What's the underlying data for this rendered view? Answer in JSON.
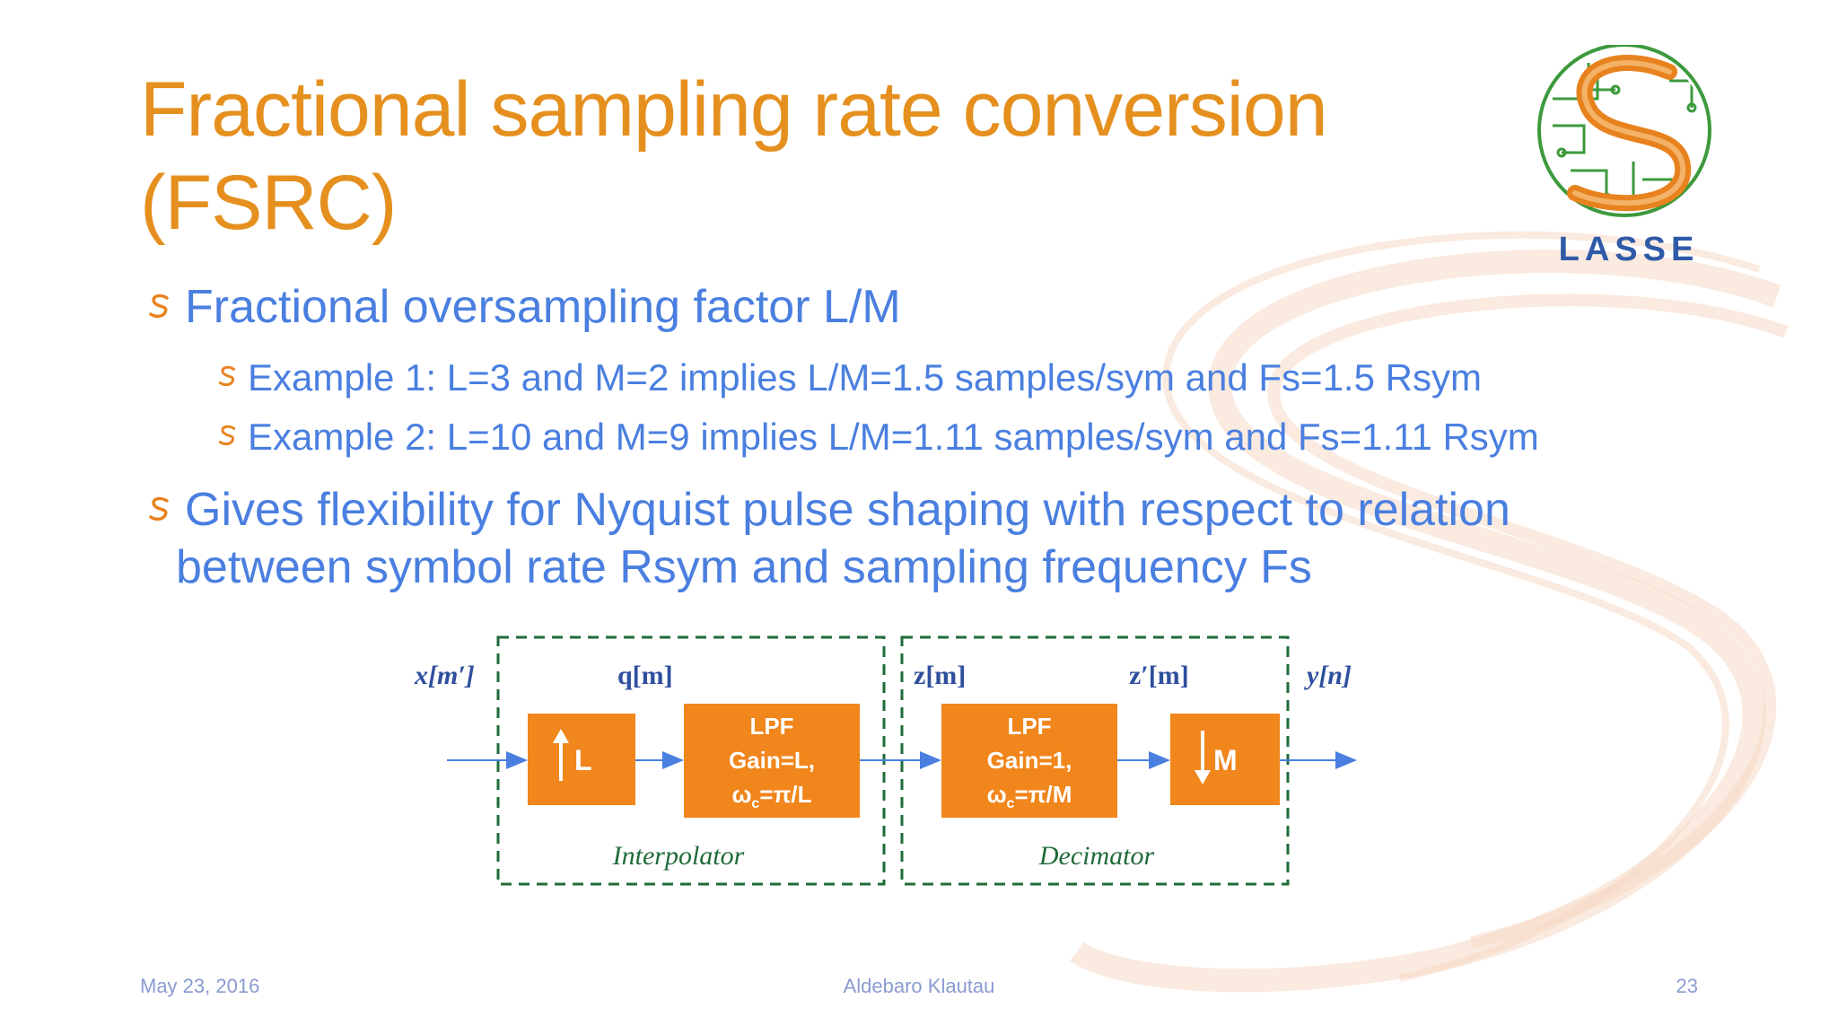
{
  "slide": {
    "title": "Fractional sampling rate conversion\n(FSRC)",
    "logo_text": "LASSE"
  },
  "bullets": [
    {
      "text": "Fractional oversampling factor L/M",
      "sub": [
        "Example 1: L=3 and M=2 implies L/M=1.5 samples/sym and Fs=1.5 Rsym",
        "Example 2: L=10 and M=9 implies L/M=1.11 samples/sym and Fs=1.11 Rsym"
      ]
    },
    {
      "text": "Gives flexibility for Nyquist pulse shaping with respect to relation",
      "text_cont": "between symbol rate Rsym and sampling frequency Fs"
    }
  ],
  "diagram": {
    "signals": {
      "x": "x[m′]",
      "q": "q[m]",
      "z": "z[m]",
      "zp": "z′[m]",
      "y": "y[n]"
    },
    "blocks": {
      "up": "L",
      "lpf1_l1": "LPF",
      "lpf1_l2": "Gain=L,",
      "lpf1_l3": "ω",
      "lpf1_sub": "c",
      "lpf1_tail": "=π/L",
      "lpf2_l1": "LPF",
      "lpf2_l2": "Gain=1,",
      "lpf2_l3": "ω",
      "lpf2_sub": "c",
      "lpf2_tail": "=π/M",
      "down": "M"
    },
    "groups": {
      "interpolator": "Interpolator",
      "decimator": "Decimator"
    }
  },
  "footer": {
    "date": "May 23, 2016",
    "author": "Aldebaro Klautau",
    "page": "23"
  },
  "colors": {
    "title": "#e5901e",
    "body": "#4a7fe0",
    "block_fill": "#f0861c",
    "group_border": "#1f6b3a",
    "signal_label": "#2f4f9e",
    "arrow": "#4a7fe0"
  }
}
